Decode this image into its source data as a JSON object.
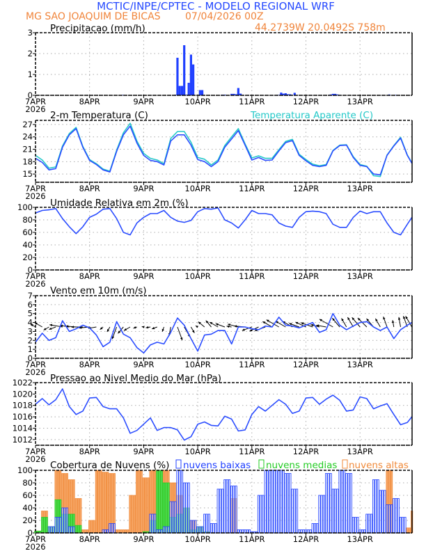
{
  "header": {
    "title": "MCTIC/INPE/CPTEC - MODELO REGIONAL WRF",
    "station": "MG SAO JOAQUIM DE BICAS",
    "run": "07/04/2026 00Z",
    "location": "44.2739W 20.0492S 758m"
  },
  "x_axis": {
    "tick_labels": [
      "7APR",
      "8APR",
      "9APR",
      "10APR",
      "11APR",
      "12APR",
      "13APR"
    ],
    "year_label": "2026"
  },
  "colors": {
    "title": "#2448ff",
    "station": "#f0843a",
    "line": "#2a4cff",
    "apparent": "#22c8c8",
    "low_clouds": "#2040ff",
    "mid_clouds": "#22cc22",
    "high_clouds": "#f08a3a",
    "precip": "#2040ff"
  },
  "times": [
    "07APR 00Z",
    "07APR 03Z",
    "07APR 06Z",
    "07APR 09Z",
    "07APR 12Z",
    "07APR 15Z",
    "07APR 18Z",
    "07APR 21Z",
    "08APR 00Z",
    "08APR 03Z",
    "08APR 06Z",
    "08APR 09Z",
    "08APR 12Z",
    "08APR 15Z",
    "08APR 18Z",
    "08APR 21Z",
    "09APR 00Z",
    "09APR 03Z",
    "09APR 06Z",
    "09APR 09Z",
    "09APR 12Z",
    "09APR 15Z",
    "09APR 18Z",
    "09APR 21Z",
    "10APR 00Z",
    "10APR 03Z",
    "10APR 06Z",
    "10APR 09Z",
    "10APR 12Z",
    "10APR 15Z",
    "10APR 18Z",
    "10APR 21Z",
    "11APR 00Z",
    "11APR 03Z",
    "11APR 06Z",
    "11APR 09Z",
    "11APR 12Z",
    "11APR 15Z",
    "11APR 18Z",
    "11APR 21Z",
    "12APR 00Z",
    "12APR 03Z",
    "12APR 06Z",
    "12APR 09Z",
    "12APR 12Z",
    "12APR 15Z",
    "12APR 18Z",
    "12APR 21Z",
    "13APR 00Z",
    "13APR 03Z",
    "13APR 06Z",
    "13APR 09Z",
    "13APR 12Z",
    "13APR 15Z",
    "13APR 18Z",
    "13APR 21Z",
    "13APR 23Z"
  ],
  "chart_data": [
    {
      "type": "bar",
      "title": "Precipitacao (mm/h)",
      "ylim": [
        0,
        3
      ],
      "yticks": [
        0,
        1,
        2,
        3
      ],
      "grid": true,
      "x": [
        "08APR 15Z",
        "09APR 14Z",
        "09APR 15Z",
        "09APR 16Z",
        "09APR 17Z",
        "09APR 18Z",
        "09APR 19Z",
        "09APR 20Z",
        "09APR 21Z",
        "09APR 22Z",
        "10APR 01Z",
        "10APR 02Z",
        "10APR 11Z",
        "10APR 12Z",
        "10APR 15Z",
        "10APR 16Z",
        "10APR 17Z",
        "10APR 18Z",
        "10APR 19Z",
        "11APR 11Z",
        "11APR 12Z",
        "11APR 13Z",
        "11APR 14Z",
        "11APR 15Z",
        "11APR 16Z",
        "11APR 17Z",
        "11APR 19Z",
        "12APR 11Z",
        "12APR 12Z",
        "12APR 13Z",
        "12APR 14Z",
        "12APR 15Z",
        "13APR 13Z",
        "13APR 16Z"
      ],
      "values": [
        0.02,
        0.03,
        1.8,
        0.45,
        0.45,
        2.4,
        0.03,
        0.6,
        1.95,
        1.48,
        0.25,
        0.25,
        0.03,
        0.03,
        0.07,
        0.07,
        0.05,
        0.35,
        0.08,
        0.02,
        0.02,
        0.13,
        0.08,
        0.1,
        0.05,
        0.05,
        0.12,
        0.04,
        0.07,
        0.07,
        0.04,
        0.02,
        0.04,
        0.02
      ]
    },
    {
      "type": "line",
      "title": "2-m Temperatura (C)",
      "legend": "Temperatura Aparente (C)",
      "ylim": [
        13,
        28
      ],
      "yticks": [
        15,
        18,
        21,
        24,
        27
      ],
      "grid": true,
      "series": [
        {
          "name": "2-m Temperatura (C)",
          "color": "#2a4cff",
          "values": [
            18.8,
            17.8,
            16.0,
            16.3,
            21.5,
            24.5,
            26.0,
            21.5,
            18.3,
            17.3,
            16.0,
            15.5,
            20.5,
            24.5,
            26.6,
            22.5,
            19.5,
            18.3,
            18.0,
            17.2,
            23.0,
            24.5,
            24.5,
            22.0,
            18.5,
            18.0,
            16.8,
            18.0,
            21.5,
            23.5,
            25.5,
            22.0,
            18.4,
            19.0,
            18.3,
            18.4,
            20.6,
            22.6,
            23.1,
            19.5,
            18.2,
            17.1,
            16.8,
            17.1,
            20.6,
            21.9,
            22.0,
            19.0,
            17.1,
            16.8,
            15.0,
            14.8,
            19.5,
            21.8,
            23.7,
            19.5,
            17.6
          ]
        },
        {
          "name": "Temperatura Aparente (C)",
          "color": "#22c8c8",
          "values": [
            19.5,
            18.4,
            16.4,
            16.7,
            21.8,
            24.8,
            26.3,
            21.7,
            18.5,
            17.5,
            16.2,
            15.7,
            20.8,
            25.0,
            27.3,
            23.0,
            20.0,
            18.8,
            18.4,
            17.5,
            23.6,
            25.3,
            25.3,
            22.7,
            19.0,
            18.6,
            17.2,
            18.4,
            21.9,
            24.0,
            26.0,
            22.3,
            18.9,
            19.4,
            18.8,
            18.8,
            20.9,
            22.9,
            23.4,
            19.8,
            18.5,
            17.4,
            17.0,
            17.3,
            20.7,
            22.0,
            22.1,
            19.2,
            17.3,
            16.9,
            14.6,
            14.4,
            19.6,
            21.9,
            23.9,
            19.6,
            17.7
          ]
        }
      ]
    },
    {
      "type": "line",
      "title": "Umidade Relativa em 2m (%)",
      "ylim": [
        0,
        100
      ],
      "yticks": [
        0,
        20,
        40,
        60,
        80,
        100
      ],
      "grid": true,
      "series": [
        {
          "color": "#2a4cff",
          "values": [
            91,
            95,
            96,
            98,
            82,
            69,
            58,
            69,
            84,
            89,
            97,
            98,
            82,
            60,
            56,
            75,
            84,
            90,
            90,
            95,
            84,
            78,
            76,
            79,
            93,
            98,
            97,
            99,
            80,
            75,
            67,
            80,
            95,
            90,
            90,
            88,
            75,
            70,
            68,
            84,
            93,
            94,
            93,
            90,
            73,
            68,
            68,
            84,
            94,
            90,
            93,
            93,
            75,
            60,
            56,
            73,
            84
          ]
        }
      ]
    },
    {
      "type": "line",
      "title": "Vento em 10m (m/s)",
      "ylim": [
        0,
        7
      ],
      "yticks": [
        0,
        1,
        2,
        3,
        4,
        5,
        6,
        7
      ],
      "grid": true,
      "series": [
        {
          "color": "#2a4cff",
          "values": [
            1.8,
            2.8,
            2.0,
            2.3,
            4.2,
            3.0,
            3.3,
            3.7,
            3.4,
            2.6,
            1.3,
            1.8,
            4.1,
            2.7,
            2.3,
            1.2,
            0.6,
            1.5,
            1.8,
            1.6,
            2.9,
            4.5,
            3.7,
            2.2,
            0.8,
            2.6,
            2.7,
            3.1,
            3.1,
            1.6,
            3.5,
            3.5,
            3.3,
            3.2,
            3.6,
            3.5,
            4.6,
            3.7,
            3.6,
            3.4,
            3.7,
            4.0,
            2.9,
            3.2,
            5.0,
            3.7,
            3.2,
            3.6,
            4.0,
            4.1,
            3.5,
            3.1,
            3.5,
            2.2,
            3.2,
            3.7,
            4.0
          ]
        }
      ],
      "vectors": {
        "direction_deg": [
          300,
          300,
          240,
          250,
          280,
          280,
          275,
          270,
          265,
          260,
          230,
          210,
          200,
          220,
          240,
          250,
          280,
          260,
          250,
          200,
          190,
          160,
          150,
          150,
          300,
          310,
          320,
          300,
          290,
          280,
          285,
          275,
          250,
          245,
          250,
          300,
          300,
          300,
          300,
          290,
          295,
          290,
          285,
          280,
          300,
          320,
          330,
          330,
          320,
          315,
          320,
          330,
          340,
          350,
          350,
          340,
          330
        ]
      }
    },
    {
      "type": "line",
      "title": "Pressao ao Nivel Medio do Mar (hPa)",
      "ylim": [
        1011,
        1022
      ],
      "yticks": [
        1012,
        1014,
        1016,
        1018,
        1020,
        1022
      ],
      "grid": true,
      "series": [
        {
          "color": "#2a4cff",
          "values": [
            1018.2,
            1019.2,
            1018.1,
            1019.0,
            1020.9,
            1017.8,
            1016.4,
            1017.0,
            1019.3,
            1019.4,
            1017.8,
            1017.4,
            1017.4,
            1015.8,
            1013.1,
            1013.6,
            1014.7,
            1015.8,
            1013.6,
            1014.1,
            1014.1,
            1013.7,
            1011.9,
            1012.5,
            1014.7,
            1015.1,
            1014.5,
            1014.4,
            1016.1,
            1015.6,
            1013.5,
            1013.7,
            1016.4,
            1017.8,
            1017.0,
            1018.0,
            1019.0,
            1018.2,
            1016.6,
            1017.0,
            1019.3,
            1019.4,
            1018.2,
            1019.1,
            1019.8,
            1018.9,
            1017.0,
            1017.2,
            1019.5,
            1019.2,
            1017.4,
            1017.9,
            1018.3,
            1016.4,
            1014.6,
            1015.0,
            1016.0
          ]
        }
      ]
    },
    {
      "type": "bar",
      "title": "Cobertura de Nuvens (%)",
      "ylim": [
        0,
        100
      ],
      "yticks": [
        0,
        20,
        40,
        60,
        80,
        100
      ],
      "grid": true,
      "series": [
        {
          "name": "nuvens altas",
          "color": "#f08a3a",
          "values": [
            3,
            35,
            10,
            100,
            95,
            85,
            55,
            5,
            20,
            100,
            97,
            95,
            5,
            5,
            60,
            100,
            88,
            100,
            100,
            100,
            80,
            60,
            35,
            20,
            0,
            0,
            0,
            0,
            0,
            55,
            0,
            0,
            0,
            0,
            0,
            0,
            0,
            0,
            0,
            0,
            0,
            0,
            0,
            0,
            0,
            0,
            0,
            0,
            0,
            0,
            0,
            0,
            100,
            0,
            0,
            8,
            35
          ]
        },
        {
          "name": "nuvens medias",
          "color": "#22cc22",
          "values": [
            3,
            25,
            10,
            53,
            30,
            30,
            12,
            0,
            0,
            0,
            0,
            0,
            0,
            0,
            0,
            0,
            2,
            20,
            100,
            80,
            25,
            30,
            40,
            5,
            10,
            2,
            0,
            0,
            0,
            0,
            0,
            0,
            0,
            0,
            0,
            0,
            0,
            0,
            0,
            0,
            0,
            0,
            0,
            0,
            0,
            0,
            0,
            0,
            0,
            0,
            0,
            0,
            0,
            0,
            0,
            0,
            0
          ]
        },
        {
          "name": "nuvens baixas",
          "color": "#2040ff",
          "values": [
            0,
            0,
            10,
            25,
            40,
            10,
            0,
            0,
            0,
            0,
            5,
            15,
            0,
            0,
            0,
            0,
            0,
            30,
            5,
            10,
            50,
            100,
            80,
            20,
            10,
            30,
            15,
            70,
            85,
            75,
            5,
            5,
            2,
            60,
            100,
            100,
            100,
            95,
            70,
            5,
            5,
            15,
            60,
            95,
            70,
            100,
            95,
            25,
            5,
            30,
            85,
            68,
            45,
            55,
            25,
            0,
            0
          ]
        }
      ]
    }
  ]
}
